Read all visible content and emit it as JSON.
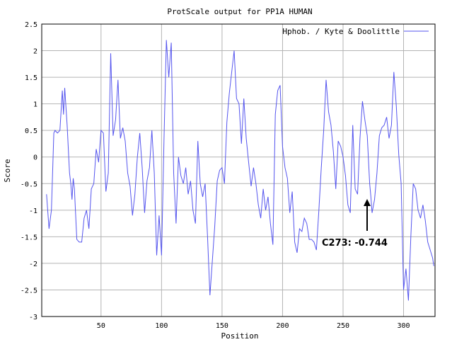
{
  "chart_data": {
    "type": "line",
    "title": "ProtScale output for PP1A HUMAN",
    "xlabel": "Position",
    "ylabel": "Score",
    "xlim": [
      1,
      326
    ],
    "ylim": [
      -3,
      2.5
    ],
    "xticks": [
      50,
      100,
      150,
      200,
      250,
      300
    ],
    "yticks": [
      -3,
      -2.5,
      -2,
      -1.5,
      -1,
      -0.5,
      0,
      0.5,
      1,
      1.5,
      2,
      2.5
    ],
    "grid": true,
    "legend": "top-right",
    "series": [
      {
        "name": "Hphob. / Kyte & Doolittle",
        "color": "#5555ee",
        "points": [
          [
            5,
            -0.7
          ],
          [
            7,
            -1.35
          ],
          [
            9,
            -1.0
          ],
          [
            11,
            0.45
          ],
          [
            12,
            0.5
          ],
          [
            14,
            0.45
          ],
          [
            16,
            0.5
          ],
          [
            18,
            1.25
          ],
          [
            19,
            0.8
          ],
          [
            20,
            1.3
          ],
          [
            22,
            0.6
          ],
          [
            24,
            -0.3
          ],
          [
            25,
            -0.5
          ],
          [
            26,
            -0.8
          ],
          [
            27,
            -0.4
          ],
          [
            28,
            -0.6
          ],
          [
            30,
            -1.55
          ],
          [
            32,
            -1.6
          ],
          [
            34,
            -1.6
          ],
          [
            36,
            -1.15
          ],
          [
            38,
            -1.0
          ],
          [
            40,
            -1.35
          ],
          [
            42,
            -0.6
          ],
          [
            44,
            -0.5
          ],
          [
            46,
            0.15
          ],
          [
            48,
            -0.1
          ],
          [
            50,
            0.5
          ],
          [
            52,
            0.45
          ],
          [
            54,
            -0.65
          ],
          [
            56,
            -0.3
          ],
          [
            58,
            1.95
          ],
          [
            60,
            0.4
          ],
          [
            62,
            0.7
          ],
          [
            64,
            1.45
          ],
          [
            66,
            0.35
          ],
          [
            68,
            0.55
          ],
          [
            70,
            0.3
          ],
          [
            72,
            -0.3
          ],
          [
            74,
            -0.55
          ],
          [
            76,
            -1.1
          ],
          [
            78,
            -0.7
          ],
          [
            80,
            0.0
          ],
          [
            82,
            0.45
          ],
          [
            84,
            -0.2
          ],
          [
            86,
            -1.05
          ],
          [
            88,
            -0.45
          ],
          [
            90,
            -0.2
          ],
          [
            92,
            0.5
          ],
          [
            94,
            -0.3
          ],
          [
            96,
            -1.85
          ],
          [
            98,
            -1.1
          ],
          [
            100,
            -1.85
          ],
          [
            102,
            0.3
          ],
          [
            104,
            2.2
          ],
          [
            106,
            1.5
          ],
          [
            108,
            2.15
          ],
          [
            110,
            -0.3
          ],
          [
            112,
            -1.25
          ],
          [
            114,
            0.0
          ],
          [
            116,
            -0.35
          ],
          [
            118,
            -0.5
          ],
          [
            120,
            -0.2
          ],
          [
            122,
            -0.7
          ],
          [
            124,
            -0.45
          ],
          [
            126,
            -1.0
          ],
          [
            128,
            -1.25
          ],
          [
            130,
            0.3
          ],
          [
            132,
            -0.5
          ],
          [
            134,
            -0.75
          ],
          [
            136,
            -0.5
          ],
          [
            138,
            -1.5
          ],
          [
            140,
            -2.6
          ],
          [
            142,
            -1.95
          ],
          [
            144,
            -1.3
          ],
          [
            146,
            -0.45
          ],
          [
            148,
            -0.25
          ],
          [
            150,
            -0.2
          ],
          [
            152,
            -0.5
          ],
          [
            154,
            0.65
          ],
          [
            156,
            1.2
          ],
          [
            158,
            1.6
          ],
          [
            160,
            2.0
          ],
          [
            162,
            1.1
          ],
          [
            164,
            1.0
          ],
          [
            166,
            0.25
          ],
          [
            168,
            1.1
          ],
          [
            170,
            0.35
          ],
          [
            172,
            -0.1
          ],
          [
            174,
            -0.55
          ],
          [
            176,
            -0.2
          ],
          [
            178,
            -0.5
          ],
          [
            180,
            -0.9
          ],
          [
            182,
            -1.15
          ],
          [
            184,
            -0.6
          ],
          [
            186,
            -1.0
          ],
          [
            188,
            -0.75
          ],
          [
            190,
            -1.25
          ],
          [
            192,
            -1.65
          ],
          [
            194,
            0.8
          ],
          [
            196,
            1.25
          ],
          [
            198,
            1.35
          ],
          [
            200,
            0.2
          ],
          [
            202,
            -0.2
          ],
          [
            204,
            -0.4
          ],
          [
            206,
            -1.05
          ],
          [
            208,
            -0.65
          ],
          [
            210,
            -1.6
          ],
          [
            212,
            -1.8
          ],
          [
            214,
            -1.35
          ],
          [
            216,
            -1.4
          ],
          [
            218,
            -1.15
          ],
          [
            220,
            -1.25
          ],
          [
            222,
            -1.55
          ],
          [
            224,
            -1.55
          ],
          [
            226,
            -1.6
          ],
          [
            228,
            -1.75
          ],
          [
            230,
            -1.0
          ],
          [
            232,
            -0.2
          ],
          [
            234,
            0.5
          ],
          [
            236,
            1.45
          ],
          [
            238,
            0.85
          ],
          [
            240,
            0.6
          ],
          [
            242,
            0.1
          ],
          [
            244,
            -0.6
          ],
          [
            246,
            0.3
          ],
          [
            248,
            0.2
          ],
          [
            250,
            0.0
          ],
          [
            252,
            -0.35
          ],
          [
            254,
            -0.9
          ],
          [
            256,
            -1.05
          ],
          [
            258,
            0.6
          ],
          [
            260,
            -0.6
          ],
          [
            262,
            -0.7
          ],
          [
            264,
            0.35
          ],
          [
            266,
            1.05
          ],
          [
            268,
            0.7
          ],
          [
            270,
            0.4
          ],
          [
            272,
            -0.5
          ],
          [
            273,
            -0.744
          ],
          [
            274,
            -1.05
          ],
          [
            276,
            -0.8
          ],
          [
            278,
            -0.3
          ],
          [
            280,
            0.4
          ],
          [
            282,
            0.55
          ],
          [
            284,
            0.6
          ],
          [
            286,
            0.75
          ],
          [
            288,
            0.35
          ],
          [
            290,
            0.6
          ],
          [
            292,
            1.6
          ],
          [
            294,
            0.95
          ],
          [
            296,
            0.05
          ],
          [
            298,
            -0.5
          ],
          [
            300,
            -2.5
          ],
          [
            302,
            -2.1
          ],
          [
            304,
            -2.7
          ],
          [
            306,
            -1.5
          ],
          [
            308,
            -0.5
          ],
          [
            310,
            -0.6
          ],
          [
            312,
            -1.0
          ],
          [
            314,
            -1.15
          ],
          [
            316,
            -0.9
          ],
          [
            318,
            -1.2
          ],
          [
            320,
            -1.6
          ],
          [
            322,
            -1.75
          ],
          [
            324,
            -1.9
          ],
          [
            325,
            -2.05
          ]
        ]
      }
    ],
    "annotation": {
      "text": "C273: -0.744",
      "x": 273,
      "y": -0.744
    }
  }
}
